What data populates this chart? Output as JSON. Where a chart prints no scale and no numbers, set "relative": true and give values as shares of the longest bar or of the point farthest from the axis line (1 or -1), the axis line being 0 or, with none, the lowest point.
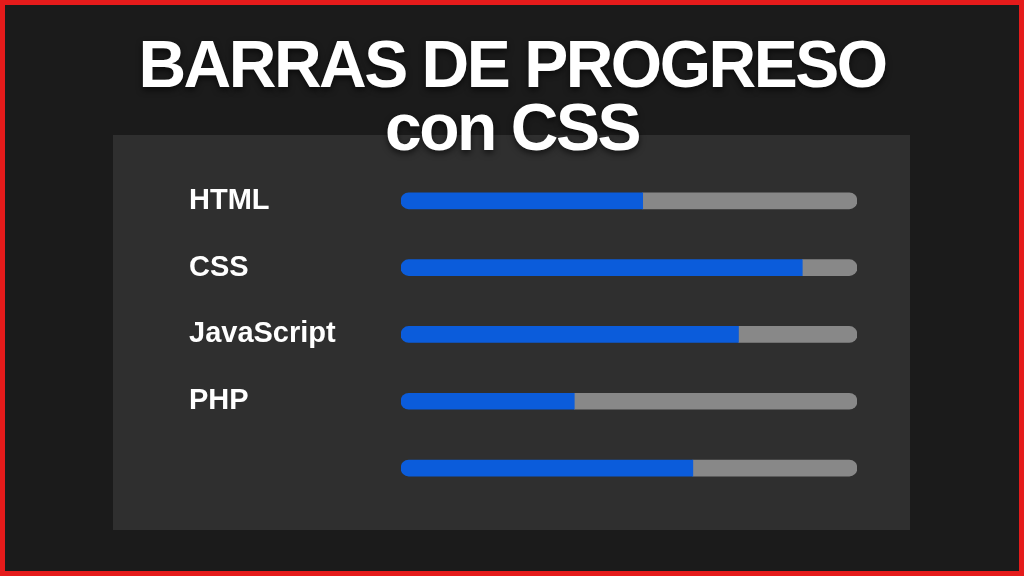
{
  "chart_data": {
    "type": "bar",
    "orientation": "horizontal",
    "stacked": true,
    "relative": true,
    "title": "BARRAS DE PROGRESO con CSS",
    "categories": [
      "HTML",
      "CSS",
      "JavaScript",
      "PHP",
      null
    ],
    "series": [
      {
        "color": "#0b5cdb",
        "values": [
          0.53,
          0.88,
          0.74,
          0.38,
          0.64
        ]
      },
      {
        "color": "#888888",
        "values": [
          0.47,
          0.12,
          0.26,
          0.62,
          0.36
        ]
      }
    ],
    "legend": false
  }
}
